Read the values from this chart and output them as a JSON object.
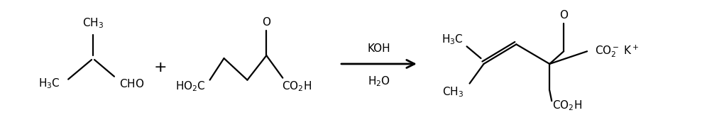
{
  "figsize": [
    9.96,
    1.76
  ],
  "dpi": 100,
  "bg_color": "white"
}
